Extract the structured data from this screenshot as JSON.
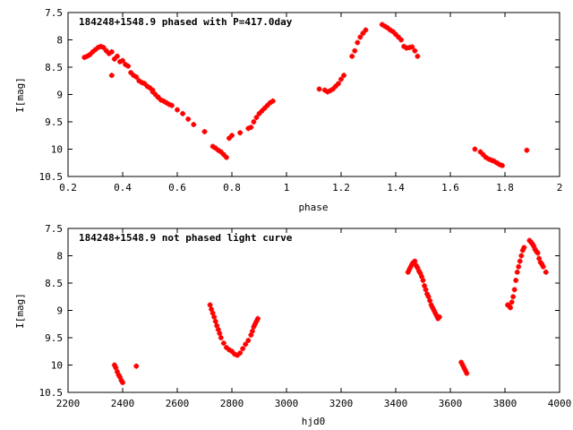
{
  "chart_data": [
    {
      "type": "scatter",
      "title": "184248+1548.9 phased with P=417.0day",
      "xlabel": "phase",
      "ylabel": "I[mag]",
      "xlim": [
        0.2,
        2.0
      ],
      "ylim": [
        10.5,
        7.5
      ],
      "y_inverted": true,
      "xticks": [
        0.2,
        0.4,
        0.6,
        0.8,
        1.0,
        1.2,
        1.4,
        1.6,
        1.8,
        2.0
      ],
      "xtick_labels": [
        "0.2",
        "0.4",
        "0.6",
        "0.8",
        "1",
        "1.2",
        "1.4",
        "1.6",
        "1.8",
        "2"
      ],
      "yticks": [
        7.5,
        8.0,
        8.5,
        9.0,
        9.5,
        10.0,
        10.5
      ],
      "ytick_labels": [
        "7.5",
        "8",
        "8.5",
        "9",
        "9.5",
        "10",
        "10.5"
      ],
      "grid": false,
      "marker": "plus",
      "color": "#ff0000",
      "series": [
        {
          "x": [
            0.26,
            0.27,
            0.28,
            0.29,
            0.3,
            0.31,
            0.32,
            0.33,
            0.34,
            0.35,
            0.36,
            0.37,
            0.38,
            0.39,
            0.4,
            0.41,
            0.42,
            0.43,
            0.44,
            0.45,
            0.46,
            0.47,
            0.48,
            0.49,
            0.5,
            0.51,
            0.52,
            0.53,
            0.54,
            0.55,
            0.56,
            0.57,
            0.58,
            0.6,
            0.62,
            0.64,
            0.66,
            0.7,
            0.73,
            0.74,
            0.75,
            0.76,
            0.77,
            0.78,
            0.79,
            0.8,
            0.83,
            0.86,
            0.87,
            0.88,
            0.89,
            0.9,
            0.91,
            0.92,
            0.93,
            0.94,
            0.95,
            0.36,
            0.51,
            0.53,
            1.12,
            1.14,
            1.15,
            1.16,
            1.17,
            1.18,
            1.19,
            1.2,
            1.21,
            1.24,
            1.25,
            1.26,
            1.27,
            1.28,
            1.29,
            1.35,
            1.36,
            1.37,
            1.38,
            1.39,
            1.4,
            1.41,
            1.42,
            1.43,
            1.44,
            1.45,
            1.46,
            1.47,
            1.48,
            1.69,
            1.71,
            1.72,
            1.73,
            1.74,
            1.75,
            1.76,
            1.77,
            1.78,
            1.79,
            1.88
          ],
          "y": [
            8.32,
            8.3,
            8.27,
            8.22,
            8.18,
            8.14,
            8.12,
            8.14,
            8.2,
            8.25,
            8.22,
            8.35,
            8.3,
            8.4,
            8.38,
            8.45,
            8.48,
            8.6,
            8.65,
            8.68,
            8.75,
            8.78,
            8.8,
            8.85,
            8.88,
            8.92,
            9.0,
            9.05,
            9.1,
            9.12,
            9.15,
            9.18,
            9.2,
            9.28,
            9.35,
            9.45,
            9.55,
            9.68,
            9.95,
            9.98,
            10.02,
            10.05,
            10.1,
            10.15,
            9.8,
            9.75,
            9.7,
            9.62,
            9.6,
            9.5,
            9.42,
            9.35,
            9.3,
            9.25,
            9.2,
            9.15,
            9.12,
            8.65,
            8.95,
            9.05,
            8.9,
            8.92,
            8.95,
            8.93,
            8.9,
            8.85,
            8.8,
            8.72,
            8.65,
            8.3,
            8.2,
            8.05,
            7.95,
            7.88,
            7.82,
            7.72,
            7.75,
            7.78,
            7.82,
            7.85,
            7.9,
            7.95,
            8.0,
            8.12,
            8.15,
            8.14,
            8.13,
            8.2,
            8.3,
            10.0,
            10.05,
            10.1,
            10.15,
            10.18,
            10.2,
            10.22,
            10.25,
            10.28,
            10.3,
            10.02
          ]
        }
      ]
    },
    {
      "type": "scatter",
      "title": "184248+1548.9 not phased light curve",
      "xlabel": "hjd0",
      "ylabel": "I[mag]",
      "xlim": [
        2200,
        4000
      ],
      "ylim": [
        10.5,
        7.5
      ],
      "y_inverted": true,
      "xticks": [
        2200,
        2400,
        2600,
        2800,
        3000,
        3200,
        3400,
        3600,
        3800,
        4000
      ],
      "xtick_labels": [
        "2200",
        "2400",
        "2600",
        "2800",
        "3000",
        "3200",
        "3400",
        "3600",
        "3800",
        "4000"
      ],
      "yticks": [
        7.5,
        8.0,
        8.5,
        9.0,
        9.5,
        10.0,
        10.5
      ],
      "ytick_labels": [
        "7.5",
        "8",
        "8.5",
        "9",
        "9.5",
        "10",
        "10.5"
      ],
      "grid": false,
      "marker": "plus",
      "color": "#ff0000",
      "series": [
        {
          "x": [
            2370,
            2375,
            2380,
            2385,
            2390,
            2395,
            2400,
            2450,
            2720,
            2725,
            2730,
            2735,
            2740,
            2745,
            2750,
            2755,
            2760,
            2770,
            2780,
            2790,
            2800,
            2810,
            2820,
            2830,
            2840,
            2850,
            2860,
            2870,
            2875,
            2880,
            2885,
            2890,
            2895,
            3445,
            3450,
            3455,
            3460,
            3465,
            3470,
            3475,
            3480,
            3485,
            3490,
            3495,
            3500,
            3505,
            3510,
            3515,
            3520,
            3525,
            3530,
            3535,
            3540,
            3545,
            3550,
            3555,
            3560,
            3640,
            3645,
            3650,
            3655,
            3660,
            3810,
            3815,
            3820,
            3825,
            3830,
            3835,
            3840,
            3845,
            3850,
            3855,
            3860,
            3865,
            3870,
            3890,
            3895,
            3900,
            3905,
            3910,
            3915,
            3920,
            3925,
            3930,
            3935,
            3940,
            3950
          ],
          "y": [
            10.0,
            10.05,
            10.12,
            10.18,
            10.22,
            10.28,
            10.32,
            10.02,
            8.9,
            8.98,
            9.05,
            9.12,
            9.2,
            9.28,
            9.35,
            9.42,
            9.5,
            9.6,
            9.68,
            9.72,
            9.75,
            9.8,
            9.82,
            9.78,
            9.7,
            9.62,
            9.55,
            9.45,
            9.38,
            9.3,
            9.25,
            9.2,
            9.15,
            8.3,
            8.25,
            8.2,
            8.15,
            8.12,
            8.1,
            8.18,
            8.22,
            8.28,
            8.32,
            8.38,
            8.45,
            8.55,
            8.62,
            8.7,
            8.75,
            8.82,
            8.9,
            8.95,
            9.0,
            9.05,
            9.1,
            9.15,
            9.12,
            9.95,
            10.0,
            10.05,
            10.1,
            10.15,
            8.9,
            8.92,
            8.95,
            8.85,
            8.75,
            8.62,
            8.45,
            8.3,
            8.2,
            8.1,
            8.0,
            7.9,
            7.85,
            7.72,
            7.75,
            7.78,
            7.82,
            7.88,
            7.92,
            7.95,
            8.05,
            8.12,
            8.15,
            8.2,
            8.3
          ]
        }
      ]
    }
  ]
}
